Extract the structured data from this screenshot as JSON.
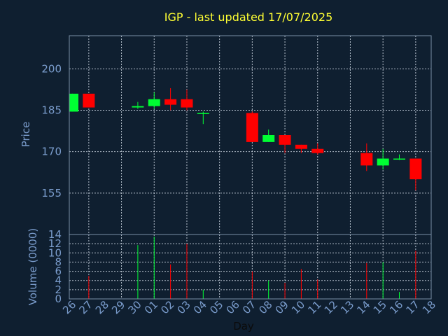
{
  "colors": {
    "background": "#0f1f30",
    "up": "#00ff33",
    "down": "#ff0000",
    "title": "#ffff33",
    "axis_text": "#7a9ccc"
  },
  "chart_data": [
    {
      "type": "candlestick",
      "title": "IGP - last updated 17/07/2025",
      "ylabel": "Price",
      "ylim": [
        140,
        212
      ],
      "yticks": [
        155,
        170,
        185,
        200
      ],
      "grid": true,
      "x_labels": [
        "26",
        "27",
        "28",
        "29",
        "30",
        "01",
        "02",
        "03",
        "04",
        "05",
        "06",
        "07",
        "08",
        "09",
        "10",
        "11",
        "12",
        "13",
        "14",
        "15",
        "16",
        "17",
        "18"
      ],
      "candles": [
        {
          "x": 0,
          "open": 184.5,
          "close": 191.0,
          "high": 191.0,
          "low": 184.5
        },
        {
          "x": 1,
          "open": 191.0,
          "close": 186.0,
          "high": 191.0,
          "low": 186.0
        },
        {
          "x": 4,
          "open": 186.0,
          "close": 186.5,
          "high": 188.0,
          "low": 185.5
        },
        {
          "x": 5,
          "open": 186.5,
          "close": 189.0,
          "high": 191.5,
          "low": 185.5
        },
        {
          "x": 6,
          "open": 189.0,
          "close": 187.0,
          "high": 193.0,
          "low": 185.0
        },
        {
          "x": 7,
          "open": 189.0,
          "close": 186.0,
          "high": 192.5,
          "low": 185.0
        },
        {
          "x": 8,
          "open": 184.0,
          "close": 184.0,
          "high": 184.5,
          "low": 180.0
        },
        {
          "x": 11,
          "open": 184.0,
          "close": 173.5,
          "high": 184.5,
          "low": 173.5
        },
        {
          "x": 12,
          "open": 173.5,
          "close": 176.0,
          "high": 178.0,
          "low": 173.5
        },
        {
          "x": 13,
          "open": 176.0,
          "close": 172.5,
          "high": 176.0,
          "low": 169.5
        },
        {
          "x": 14,
          "open": 172.5,
          "close": 171.0,
          "high": 172.5,
          "low": 169.5
        },
        {
          "x": 15,
          "open": 171.0,
          "close": 169.5,
          "high": 173.0,
          "low": 169.0
        },
        {
          "x": 18,
          "open": 169.5,
          "close": 165.0,
          "high": 173.0,
          "low": 163.0
        },
        {
          "x": 19,
          "open": 165.0,
          "close": 167.5,
          "high": 171.0,
          "low": 163.5
        },
        {
          "x": 20,
          "open": 167.5,
          "close": 167.5,
          "high": 169.0,
          "low": 167.0
        },
        {
          "x": 21,
          "open": 167.5,
          "close": 160.0,
          "high": 167.5,
          "low": 156.0
        }
      ]
    },
    {
      "type": "bar",
      "ylabel": "Volume (0000)",
      "xlabel": "Day",
      "ylim": [
        0,
        14
      ],
      "yticks": [
        0,
        2,
        4,
        6,
        8,
        10,
        12,
        14
      ],
      "grid": true,
      "x_labels": [
        "26",
        "27",
        "28",
        "29",
        "30",
        "01",
        "02",
        "03",
        "04",
        "05",
        "06",
        "07",
        "08",
        "09",
        "10",
        "11",
        "12",
        "13",
        "14",
        "15",
        "16",
        "17",
        "18"
      ],
      "bars": [
        {
          "x": 0,
          "value": 0,
          "dir": "up"
        },
        {
          "x": 1,
          "value": 5.0,
          "dir": "down"
        },
        {
          "x": 4,
          "value": 11.7,
          "dir": "up"
        },
        {
          "x": 5,
          "value": 13.5,
          "dir": "up"
        },
        {
          "x": 6,
          "value": 7.5,
          "dir": "down"
        },
        {
          "x": 7,
          "value": 12.0,
          "dir": "down"
        },
        {
          "x": 8,
          "value": 2.0,
          "dir": "up"
        },
        {
          "x": 11,
          "value": 6.0,
          "dir": "down"
        },
        {
          "x": 12,
          "value": 4.0,
          "dir": "up"
        },
        {
          "x": 13,
          "value": 3.5,
          "dir": "down"
        },
        {
          "x": 14,
          "value": 6.5,
          "dir": "down"
        },
        {
          "x": 15,
          "value": 4.2,
          "dir": "down"
        },
        {
          "x": 18,
          "value": 7.8,
          "dir": "down"
        },
        {
          "x": 19,
          "value": 8.0,
          "dir": "up"
        },
        {
          "x": 20,
          "value": 1.5,
          "dir": "up"
        },
        {
          "x": 21,
          "value": 10.5,
          "dir": "down"
        }
      ]
    }
  ]
}
